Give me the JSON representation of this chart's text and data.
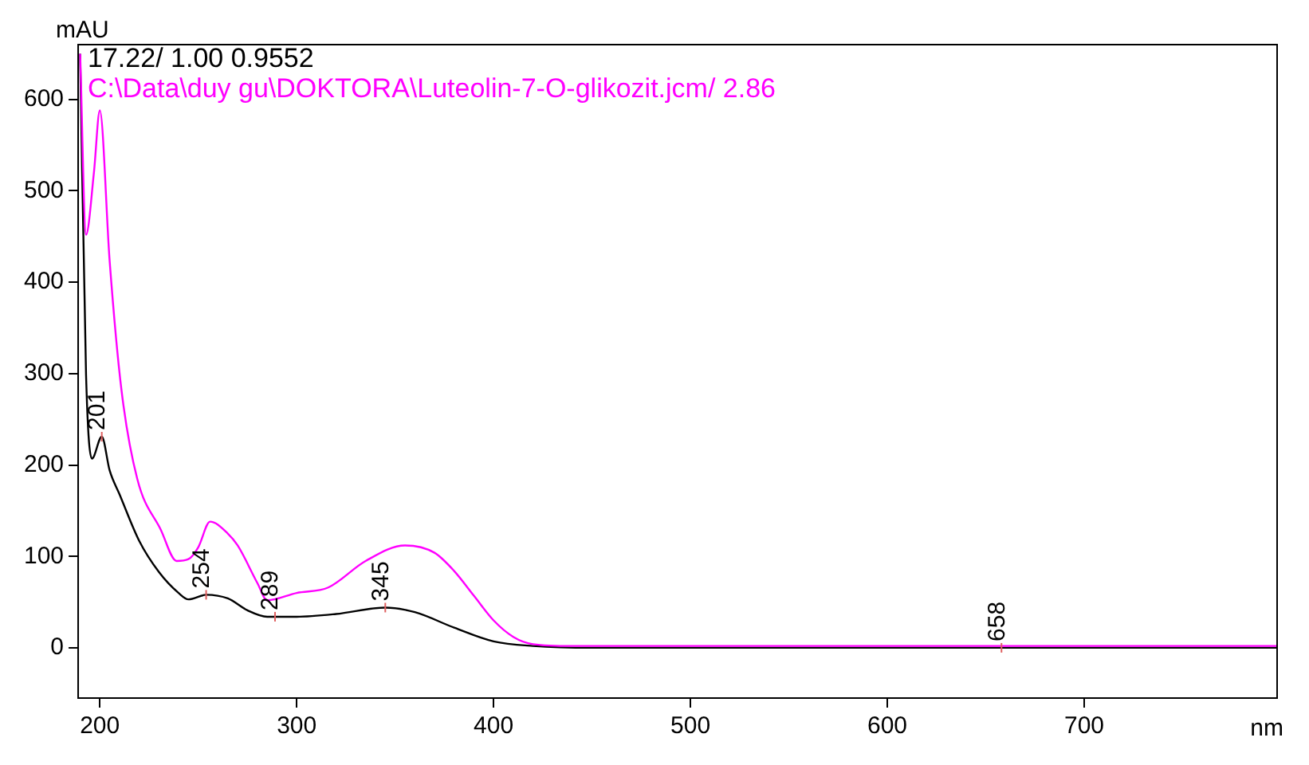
{
  "chart_data": {
    "type": "line",
    "xlabel": "nm",
    "ylabel": "mAU",
    "xlim": [
      189,
      798
    ],
    "xticks": [
      200,
      300,
      400,
      500,
      600,
      700
    ],
    "ylim": [
      -55,
      660
    ],
    "yticks": [
      0,
      100,
      200,
      300,
      400,
      500,
      600
    ],
    "grid": false,
    "legend": "top left",
    "marker": "none",
    "line_style": "solid",
    "series": [
      {
        "name": "17.22/ 1.00 0.9552",
        "color": "#000000",
        "x": [
          190,
          193,
          196,
          201,
          205,
          210,
          220,
          230,
          240,
          245,
          254,
          265,
          275,
          285,
          300,
          320,
          345,
          360,
          380,
          400,
          420,
          450,
          500,
          600,
          700,
          798
        ],
        "values": [
          650,
          299,
          207,
          231,
          194,
          168,
          117,
          83,
          60,
          53,
          58,
          54,
          41,
          34,
          34,
          37,
          44,
          39,
          22,
          7,
          2,
          0,
          0,
          0,
          0,
          0
        ]
      },
      {
        "name": "C:\\Data\\duy gu\\DOKTORA\\Luteolin-7-O-glikozit.jcm/ 2.86",
        "color": "#ff00ff",
        "x": [
          190,
          193,
          197,
          200,
          205,
          211,
          219,
          231,
          239,
          245,
          250,
          256,
          265,
          270,
          280,
          285,
          300,
          316,
          335,
          355,
          370,
          380,
          390,
          400,
          410,
          420,
          440,
          500,
          600,
          700,
          798
        ],
        "values": [
          650,
          452,
          520,
          588,
          423,
          282,
          185,
          129,
          95,
          97,
          110,
          138,
          125,
          112,
          71,
          52,
          60,
          66,
          95,
          112,
          104,
          84,
          57,
          30,
          12,
          4,
          2,
          2,
          2,
          2,
          2
        ]
      }
    ],
    "annotations": [
      {
        "text": "201",
        "x": 201,
        "y": 231
      },
      {
        "text": "254",
        "x": 254,
        "y": 58
      },
      {
        "text": "289",
        "x": 289,
        "y": 34
      },
      {
        "text": "345",
        "x": 345,
        "y": 44
      },
      {
        "text": "658",
        "x": 658,
        "y": 0
      }
    ]
  }
}
